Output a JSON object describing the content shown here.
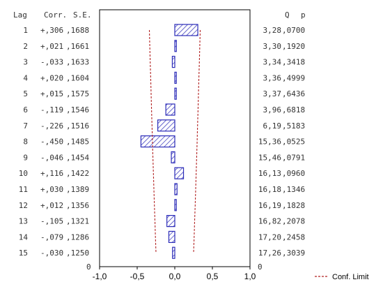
{
  "chart_data": {
    "type": "bar",
    "orientation": "horizontal",
    "title": "",
    "xlabel": "",
    "ylabel": "",
    "xlim": [
      -1.0,
      1.0
    ],
    "x_ticks": [
      "-1,0",
      "-0,5",
      "0,0",
      "0,5",
      "1,0"
    ],
    "x_tick_values": [
      -1.0,
      -0.5,
      0.0,
      0.5,
      1.0
    ],
    "grid": false,
    "legend_position": "bottom-right",
    "bar_color": "#2b2bb8",
    "limit_color": "#b22222",
    "headers": {
      "lag": "Lag",
      "corr": "Corr.",
      "se": "S.E.",
      "q": "Q",
      "p": "p"
    },
    "rows": [
      {
        "lag": "1",
        "corr_text": "+,306",
        "se_text": ",1688",
        "q_text": "3,28",
        "p_text": ",0700",
        "corr": 0.306,
        "se": 0.1688
      },
      {
        "lag": "2",
        "corr_text": "+,021",
        "se_text": ",1661",
        "q_text": "3,30",
        "p_text": ",1920",
        "corr": 0.021,
        "se": 0.1661
      },
      {
        "lag": "3",
        "corr_text": "-,033",
        "se_text": ",1633",
        "q_text": "3,34",
        "p_text": ",3418",
        "corr": -0.033,
        "se": 0.1633
      },
      {
        "lag": "4",
        "corr_text": "+,020",
        "se_text": ",1604",
        "q_text": "3,36",
        "p_text": ",4999",
        "corr": 0.02,
        "se": 0.1604
      },
      {
        "lag": "5",
        "corr_text": "+,015",
        "se_text": ",1575",
        "q_text": "3,37",
        "p_text": ",6436",
        "corr": 0.015,
        "se": 0.1575
      },
      {
        "lag": "6",
        "corr_text": "-,119",
        "se_text": ",1546",
        "q_text": "3,96",
        "p_text": ",6818",
        "corr": -0.119,
        "se": 0.1546
      },
      {
        "lag": "7",
        "corr_text": "-,226",
        "se_text": ",1516",
        "q_text": "6,19",
        "p_text": ",5183",
        "corr": -0.226,
        "se": 0.1516
      },
      {
        "lag": "8",
        "corr_text": "-,450",
        "se_text": ",1485",
        "q_text": "15,36",
        "p_text": ",0525",
        "corr": -0.45,
        "se": 0.1485
      },
      {
        "lag": "9",
        "corr_text": "-,046",
        "se_text": ",1454",
        "q_text": "15,46",
        "p_text": ",0791",
        "corr": -0.046,
        "se": 0.1454
      },
      {
        "lag": "10",
        "corr_text": "+,116",
        "se_text": ",1422",
        "q_text": "16,13",
        "p_text": ",0960",
        "corr": 0.116,
        "se": 0.1422
      },
      {
        "lag": "11",
        "corr_text": "+,030",
        "se_text": ",1389",
        "q_text": "16,18",
        "p_text": ",1346",
        "corr": 0.03,
        "se": 0.1389
      },
      {
        "lag": "12",
        "corr_text": "+,012",
        "se_text": ",1356",
        "q_text": "16,19",
        "p_text": ",1828",
        "corr": 0.012,
        "se": 0.1356
      },
      {
        "lag": "13",
        "corr_text": "-,105",
        "se_text": ",1321",
        "q_text": "16,82",
        "p_text": ",2078",
        "corr": -0.105,
        "se": 0.1321
      },
      {
        "lag": "14",
        "corr_text": "-,079",
        "se_text": ",1286",
        "q_text": "17,20",
        "p_text": ",2458",
        "corr": -0.079,
        "se": 0.1286
      },
      {
        "lag": "15",
        "corr_text": "-,030",
        "se_text": ",1250",
        "q_text": "17,26",
        "p_text": ",3039",
        "corr": -0.03,
        "se": 0.125
      }
    ],
    "zero_row": {
      "left": "0",
      "right": "0"
    },
    "legend": {
      "label": "Conf. Limit"
    }
  }
}
